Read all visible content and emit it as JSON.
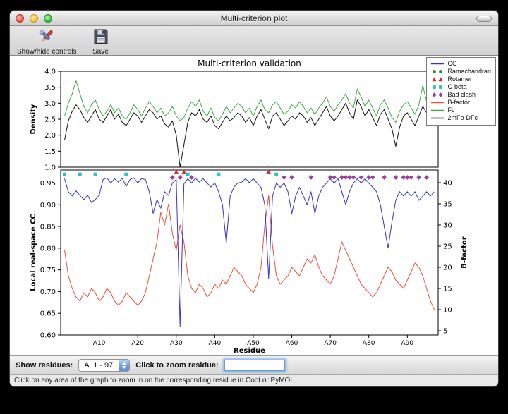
{
  "window": {
    "title": "Multi-criterion plot"
  },
  "toolbar": {
    "buttons": [
      {
        "label": "Show/hide controls",
        "icon": "tools-icon"
      },
      {
        "label": "Save",
        "icon": "save-icon"
      }
    ]
  },
  "controls": {
    "show_residues_label": "Show residues:",
    "residue_range_value": "A  1 - 97",
    "zoom_label": "Click to zoom residue:",
    "zoom_value": ""
  },
  "status_bar": {
    "text": "Click on any area of the graph to zoom in on the corresponding residue in Coot or PyMOL."
  },
  "legend": {
    "items": [
      {
        "label": "CC",
        "type": "line",
        "color": "#3333cc"
      },
      {
        "label": "Ramachandran",
        "type": "circle",
        "color": "#228b22"
      },
      {
        "label": "Rotamer",
        "type": "triangle",
        "color": "#cc2d22"
      },
      {
        "label": "C-beta",
        "type": "square",
        "color": "#35c0c0"
      },
      {
        "label": "Bad clash",
        "type": "diamond",
        "color": "#9b3d9b"
      },
      {
        "label": "B-factor",
        "type": "line",
        "color": "#f0503c"
      },
      {
        "label": "Fc",
        "type": "line",
        "color": "#41a547"
      },
      {
        "label": "2mFo-DFc",
        "type": "line",
        "color": "#111111"
      }
    ]
  },
  "chart_data": [
    {
      "type": "line",
      "title": "Multi-criterion validation",
      "ylabel": "Density",
      "ylim": [
        1.0,
        4.0
      ],
      "yticks": [
        1.0,
        1.5,
        2.0,
        2.5,
        3.0,
        3.5,
        4.0
      ],
      "xlim": [
        0,
        98
      ],
      "x_start": 1,
      "series": [
        {
          "name": "Fc",
          "color": "#41a547",
          "values": [
            2.6,
            3.0,
            3.3,
            3.7,
            3.3,
            2.9,
            2.7,
            2.95,
            3.1,
            2.8,
            2.6,
            2.75,
            2.95,
            2.7,
            2.85,
            2.6,
            2.5,
            2.7,
            2.95,
            2.8,
            2.6,
            2.85,
            3.05,
            2.9,
            2.7,
            2.85,
            2.6,
            2.7,
            2.9,
            2.6,
            2.45,
            2.55,
            2.85,
            3.05,
            2.9,
            3.1,
            2.75,
            2.6,
            2.85,
            2.55,
            2.45,
            2.65,
            2.9,
            2.7,
            2.85,
            3.0,
            2.9,
            2.7,
            2.85,
            2.6,
            2.9,
            3.1,
            2.8,
            2.7,
            2.95,
            3.05,
            2.85,
            2.65,
            2.75,
            2.95,
            2.85,
            3.05,
            2.9,
            2.7,
            2.85,
            2.65,
            2.85,
            3.0,
            3.2,
            2.9,
            2.75,
            2.95,
            3.1,
            3.3,
            3.0,
            2.85,
            3.45,
            3.2,
            2.9,
            3.1,
            2.85,
            2.6,
            2.95,
            3.1,
            2.85,
            2.55,
            2.4,
            2.75,
            2.95,
            3.05,
            2.85,
            2.65,
            2.95,
            3.55,
            3.05,
            2.85,
            3.1
          ]
        },
        {
          "name": "2mFo-DFc",
          "color": "#111111",
          "values": [
            1.85,
            2.45,
            2.75,
            2.95,
            2.8,
            2.55,
            2.4,
            2.6,
            2.8,
            2.5,
            2.4,
            2.6,
            2.8,
            2.5,
            2.65,
            2.4,
            2.3,
            2.5,
            2.7,
            2.6,
            2.4,
            2.6,
            2.8,
            2.7,
            2.5,
            2.6,
            2.35,
            2.25,
            2.45,
            2.0,
            1.0,
            1.7,
            2.4,
            2.7,
            2.6,
            2.8,
            2.5,
            2.4,
            2.6,
            2.3,
            2.2,
            2.4,
            2.6,
            2.45,
            2.55,
            2.7,
            2.6,
            2.4,
            2.55,
            2.3,
            2.6,
            2.8,
            2.5,
            2.2,
            2.6,
            2.7,
            2.5,
            2.3,
            2.45,
            2.6,
            2.5,
            2.7,
            2.6,
            2.4,
            2.55,
            2.3,
            2.5,
            2.7,
            2.9,
            2.6,
            2.45,
            2.6,
            2.8,
            3.0,
            2.7,
            2.5,
            3.1,
            2.9,
            2.6,
            2.8,
            2.55,
            2.3,
            2.65,
            2.8,
            2.5,
            2.2,
            1.65,
            2.25,
            2.6,
            2.7,
            2.5,
            2.3,
            2.6,
            2.9,
            2.7,
            2.5,
            2.8
          ]
        }
      ]
    },
    {
      "type": "line+markers",
      "xlabel": "Residue",
      "ylabel": "Local real-space CC",
      "ylabel_right": "B-factor",
      "ylim": [
        0.6,
        0.98
      ],
      "yticks": [
        0.6,
        0.65,
        0.7,
        0.75,
        0.8,
        0.85,
        0.9,
        0.95
      ],
      "ylim_right": [
        4,
        43
      ],
      "yticks_right": [
        5,
        10,
        15,
        20,
        25,
        30,
        35,
        40
      ],
      "xlim": [
        0,
        98
      ],
      "x_start": 1,
      "xticks": [
        {
          "pos": 10,
          "label": "A10"
        },
        {
          "pos": 20,
          "label": "A20"
        },
        {
          "pos": 30,
          "label": "A30"
        },
        {
          "pos": 40,
          "label": "A40"
        },
        {
          "pos": 50,
          "label": "A50"
        },
        {
          "pos": 60,
          "label": "A60"
        },
        {
          "pos": 70,
          "label": "A70"
        },
        {
          "pos": 80,
          "label": "A80"
        },
        {
          "pos": 90,
          "label": "A90"
        }
      ],
      "series": [
        {
          "name": "B-factor",
          "axis": "right",
          "color": "#f0503c",
          "values": [
            24,
            18,
            15,
            13,
            12,
            14,
            13,
            15,
            14,
            12,
            13,
            15,
            14,
            12,
            11,
            12,
            14,
            13,
            12,
            11,
            12,
            14,
            18,
            22,
            26,
            33,
            30,
            35,
            28,
            24,
            30,
            26,
            18,
            15,
            14,
            16,
            15,
            13,
            14,
            16,
            15,
            17,
            16,
            18,
            20,
            19,
            18,
            16,
            15,
            14,
            16,
            20,
            30,
            37,
            25,
            18,
            16,
            17,
            18,
            20,
            19,
            18,
            20,
            22,
            21,
            23,
            20,
            18,
            17,
            16,
            18,
            22,
            26,
            24,
            22,
            20,
            18,
            16,
            15,
            14,
            13,
            14,
            16,
            18,
            20,
            19,
            17,
            16,
            15,
            17,
            19,
            21,
            20,
            18,
            15,
            12,
            10
          ]
        },
        {
          "name": "CC",
          "axis": "left",
          "color": "#3333cc",
          "values": [
            0.96,
            0.93,
            0.92,
            0.932,
            0.921,
            0.912,
            0.922,
            0.905,
            0.912,
            0.922,
            0.958,
            0.962,
            0.95,
            0.96,
            0.952,
            0.961,
            0.942,
            0.958,
            0.962,
            0.95,
            0.96,
            0.958,
            0.93,
            0.88,
            0.912,
            0.892,
            0.93,
            0.921,
            0.95,
            0.958,
            0.62,
            0.948,
            0.96,
            0.95,
            0.961,
            0.952,
            0.96,
            0.95,
            0.941,
            0.95,
            0.93,
            0.9,
            0.812,
            0.92,
            0.941,
            0.95,
            0.952,
            0.96,
            0.951,
            0.96,
            0.95,
            0.94,
            0.9,
            0.73,
            0.92,
            0.95,
            0.94,
            0.95,
            0.93,
            0.88,
            0.92,
            0.94,
            0.92,
            0.9,
            0.93,
            0.88,
            0.92,
            0.94,
            0.95,
            0.96,
            0.95,
            0.96,
            0.93,
            0.9,
            0.93,
            0.95,
            0.96,
            0.95,
            0.96,
            0.95,
            0.94,
            0.93,
            0.9,
            0.85,
            0.8,
            0.86,
            0.91,
            0.93,
            0.92,
            0.93,
            0.92,
            0.93,
            0.91,
            0.92,
            0.93,
            0.92,
            0.93
          ]
        }
      ],
      "markers": [
        {
          "name": "Ramachandran",
          "shape": "circle",
          "color": "#228b22",
          "y": 0.975,
          "residues": []
        },
        {
          "name": "Rotamer",
          "shape": "triangle",
          "color": "#cc2d22",
          "y": 0.975,
          "residues": [
            30,
            32,
            54
          ]
        },
        {
          "name": "C-beta",
          "shape": "square",
          "color": "#35c0c0",
          "y": 0.97,
          "residues": [
            1,
            5,
            9,
            17,
            33,
            41,
            56
          ]
        },
        {
          "name": "Bad clash",
          "shape": "diamond",
          "color": "#9b3d9b",
          "y": 0.963,
          "residues": [
            29,
            31,
            34,
            58,
            60,
            65,
            70,
            71,
            73,
            74,
            75,
            76,
            78,
            80,
            81,
            84,
            87,
            89,
            90,
            91,
            93,
            95
          ]
        }
      ]
    }
  ]
}
